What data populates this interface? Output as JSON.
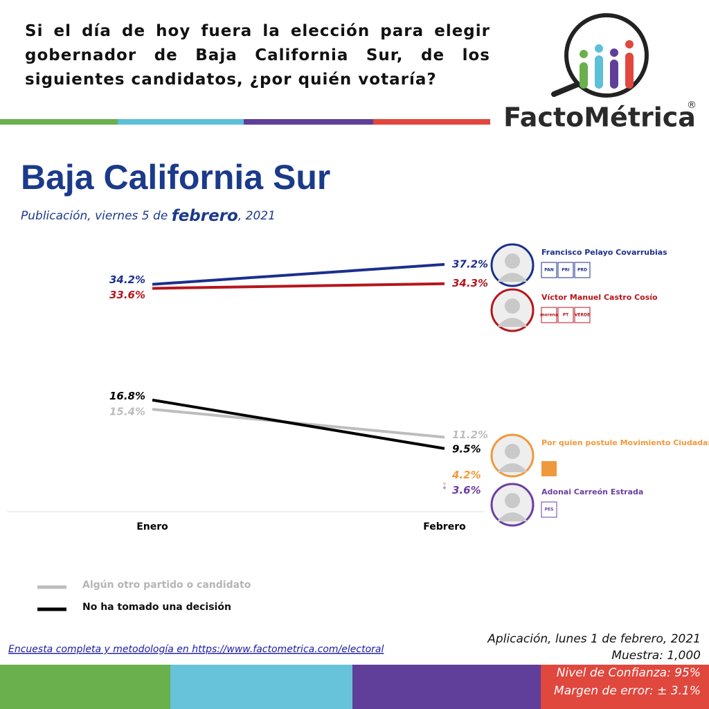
{
  "question": "Si el día de hoy fuera la elección para elegir gobernador de Baja California Sur, de los siguientes candidatos, ¿por quién votaría?",
  "logo": {
    "name": "FactoMétrica",
    "mark": "®"
  },
  "chart_data": {
    "type": "line",
    "title": "Baja California Sur",
    "subtitle": {
      "before": "Publicación, viernes 5 de ",
      "emphasis": "febrero",
      "after": ",  2021"
    },
    "categories": [
      "Enero",
      "Febrero"
    ],
    "ylim": [
      0,
      40
    ],
    "series": [
      {
        "name": "Francisco Pelayo Covarrubias",
        "color": "#1b2f8c",
        "values": [
          34.2,
          37.2
        ],
        "value_labels": [
          "34.2%",
          "37.2%"
        ],
        "parties": [
          "PAN",
          "PRI",
          "PRD"
        ]
      },
      {
        "name": "Víctor Manuel Castro Cosío",
        "color": "#b5161c",
        "values": [
          33.6,
          34.3
        ],
        "value_labels": [
          "33.6%",
          "34.3%"
        ],
        "parties": [
          "morena",
          "PT",
          "VERDE"
        ]
      },
      {
        "name": "Algún otro partido o candidato",
        "color": "#bdbdbd",
        "values": [
          15.4,
          11.2
        ],
        "value_labels": [
          "15.4%",
          "11.2%"
        ]
      },
      {
        "name": "No ha tomado una decisión",
        "color": "#000000",
        "values": [
          16.8,
          9.5
        ],
        "value_labels": [
          "16.8%",
          "9.5%"
        ]
      },
      {
        "name": "Por quien postule Movimiento Ciudadano",
        "color": "#f0993c",
        "values": [
          null,
          4.2
        ],
        "value_labels": [
          null,
          "4.2%"
        ]
      },
      {
        "name": "Adonai Carreón Estrada",
        "color": "#6b3fa0",
        "values": [
          null,
          3.6
        ],
        "value_labels": [
          null,
          "3.6%"
        ],
        "parties": [
          "PES"
        ]
      }
    ]
  },
  "footer": {
    "link": "Encuesta completa y metodología en https://www.factometrica.com/electoral",
    "application": "Aplicación, lunes 1 de febrero, 2021",
    "sample": "Muestra:  1,000",
    "confidence": "Nivel de Confianza: 95%",
    "error": "Margen de error: ± 3.1%"
  }
}
